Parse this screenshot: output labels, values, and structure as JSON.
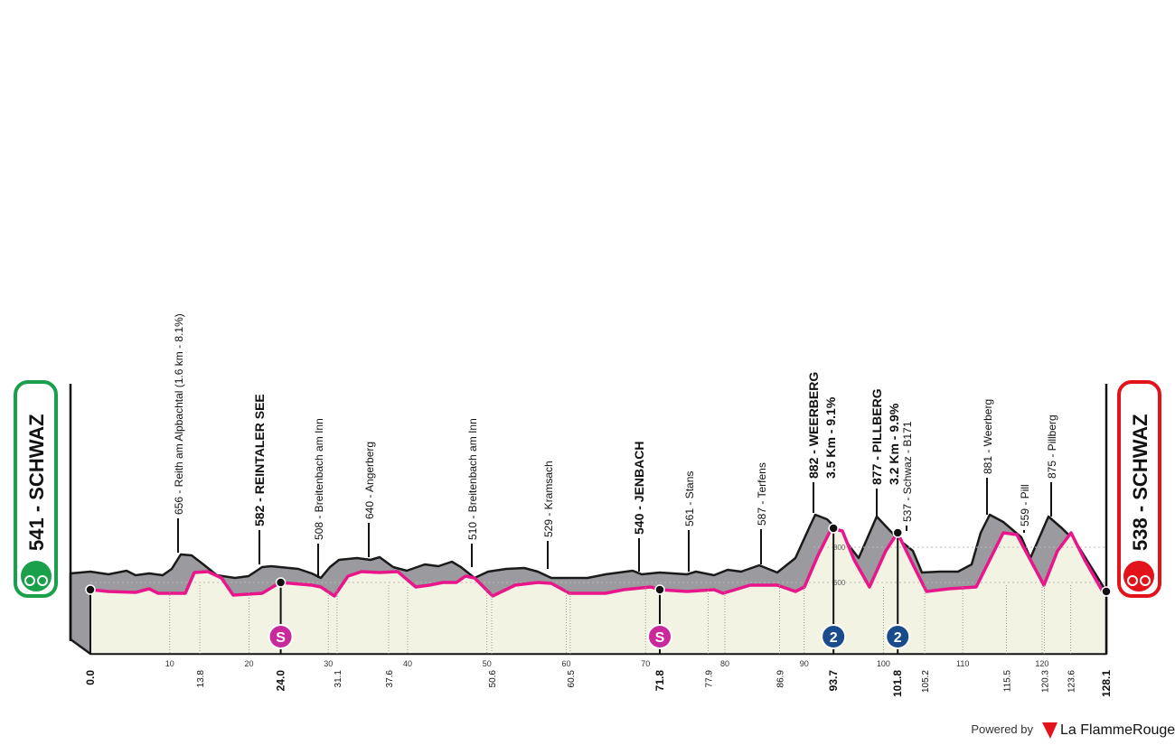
{
  "start": {
    "label": "541 - SCHWAZ"
  },
  "finish": {
    "label": "538 - SCHWAZ"
  },
  "waypoints": [
    {
      "label": "656 - Reith am Alpbachtal (1.6 km - 8.1%)"
    },
    {
      "label": "582 - REINTALER SEE"
    },
    {
      "label": "508 - Breitenbach am Inn"
    },
    {
      "label": "640 - Angerberg"
    },
    {
      "label": "510 - Breitenbach am Inn"
    },
    {
      "label": "529 - Kramsach"
    },
    {
      "label": "540 - JENBACH"
    },
    {
      "label": "561 - Stans"
    },
    {
      "label": "587 - Terfens"
    },
    {
      "label": "882 - WEERBERG",
      "sub": "3.5 Km - 9.1%"
    },
    {
      "label": "877 - PILLBERG",
      "sub": "3.2 Km - 9.9%"
    },
    {
      "label": "537 - Schwaz - B171"
    },
    {
      "label": "881 - Weerberg"
    },
    {
      "label": "559 - Pill"
    },
    {
      "label": "875 - Pillberg"
    }
  ],
  "grid_labels": [
    "800",
    "600"
  ],
  "axis_ticks": [
    10,
    20,
    30,
    40,
    50,
    60,
    70,
    80,
    90,
    100,
    110,
    120
  ],
  "km_points": [
    "0.0",
    "13.8",
    "24.0",
    "31.1",
    "37.6",
    "50.6",
    "60.5",
    "71.8",
    "77.9",
    "86.9",
    "93.7",
    "101.8",
    "105.2",
    "115.5",
    "120.3",
    "123.6",
    "128.1"
  ],
  "badges": [
    {
      "text": "S",
      "km": "24.0"
    },
    {
      "text": "S",
      "km": "71.8"
    },
    {
      "text": "2",
      "km": "93.7"
    },
    {
      "text": "2",
      "km": "101.8"
    }
  ],
  "brand": {
    "prefix": "Powered by",
    "name": "La FlammeRouge"
  }
}
